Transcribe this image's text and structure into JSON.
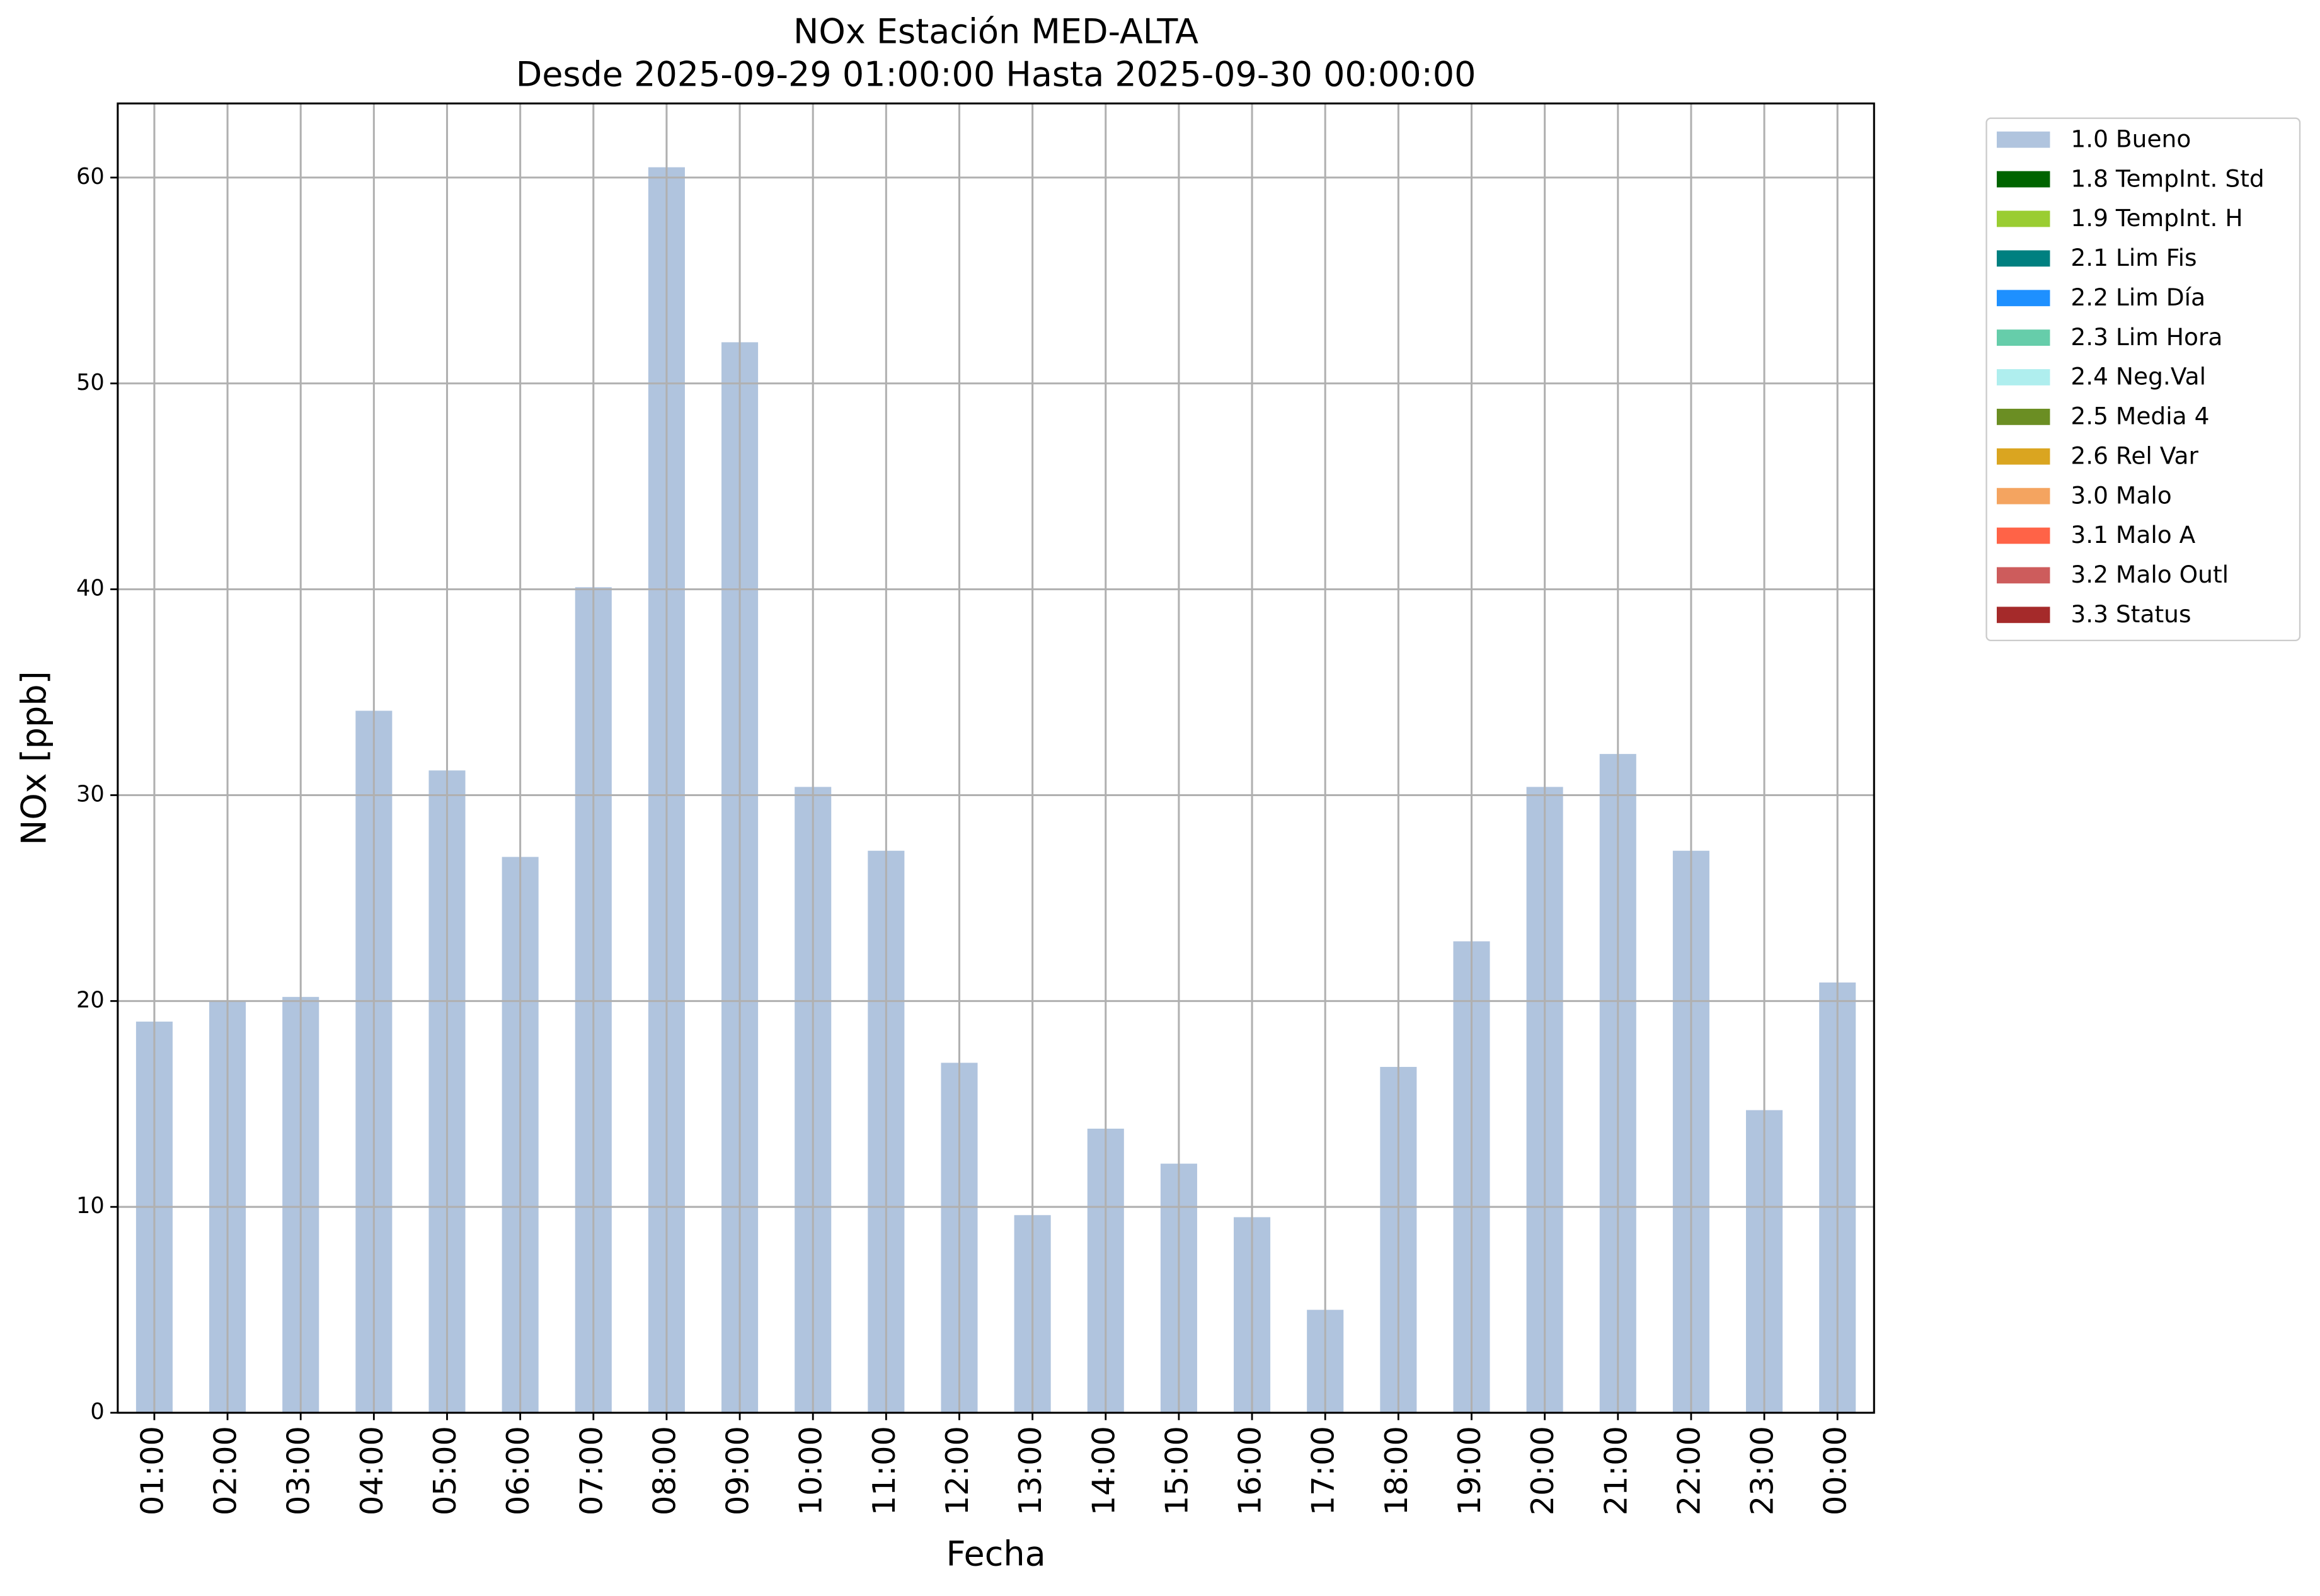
{
  "chart_data": {
    "type": "stacked_bar",
    "title": "NOx Estación MED-ALTA",
    "subtitle": "Desde 2025-09-29 01:00:00 Hasta 2025-09-30 00:00:00",
    "x_label": "Fecha",
    "y_label": "NOx [ppb]",
    "categories": [
      "01:00",
      "02:00",
      "03:00",
      "04:00",
      "05:00",
      "06:00",
      "07:00",
      "08:00",
      "09:00",
      "10:00",
      "11:00",
      "12:00",
      "13:00",
      "14:00",
      "15:00",
      "16:00",
      "17:00",
      "18:00",
      "19:00",
      "20:00",
      "21:00",
      "22:00",
      "23:00",
      "00:00"
    ],
    "series": [
      {
        "name": "1.0 Bueno",
        "color": "#b0c4de",
        "values": [
          19.0,
          20.0,
          20.2,
          34.1,
          31.2,
          27.0,
          40.1,
          60.5,
          52.0,
          30.4,
          27.3,
          17.0,
          9.6,
          13.8,
          12.1,
          9.5,
          5.0,
          16.8,
          22.9,
          30.4,
          32.0,
          27.3,
          14.7,
          20.9
        ]
      },
      {
        "name": "1.8 TempInt. Std",
        "color": "#006400",
        "values": [
          null,
          null,
          null,
          null,
          null,
          null,
          null,
          null,
          null,
          null,
          null,
          null,
          null,
          null,
          null,
          null,
          null,
          null,
          null,
          null,
          null,
          null,
          null,
          null
        ]
      },
      {
        "name": "1.9 TempInt. H",
        "color": "#9acd32",
        "values": [
          null,
          null,
          null,
          null,
          null,
          null,
          null,
          null,
          null,
          null,
          null,
          null,
          null,
          null,
          null,
          null,
          null,
          null,
          null,
          null,
          null,
          null,
          null,
          null
        ]
      },
      {
        "name": "2.1 Lim Fis",
        "color": "#008080",
        "values": [
          null,
          null,
          null,
          null,
          null,
          null,
          null,
          null,
          null,
          null,
          null,
          null,
          null,
          null,
          null,
          null,
          null,
          null,
          null,
          null,
          null,
          null,
          null,
          null
        ]
      },
      {
        "name": "2.2 Lim Día",
        "color": "#1e90ff",
        "values": [
          null,
          null,
          null,
          null,
          null,
          null,
          null,
          null,
          null,
          null,
          null,
          null,
          null,
          null,
          null,
          null,
          null,
          null,
          null,
          null,
          null,
          null,
          null,
          null
        ]
      },
      {
        "name": "2.3 Lim Hora",
        "color": "#66cdaa",
        "values": [
          null,
          null,
          null,
          null,
          null,
          null,
          null,
          null,
          null,
          null,
          null,
          null,
          null,
          null,
          null,
          null,
          null,
          null,
          null,
          null,
          null,
          null,
          null,
          null
        ]
      },
      {
        "name": "2.4 Neg.Val",
        "color": "#afeeee",
        "values": [
          null,
          null,
          null,
          null,
          null,
          null,
          null,
          null,
          null,
          null,
          null,
          null,
          null,
          null,
          null,
          null,
          null,
          null,
          null,
          null,
          null,
          null,
          null,
          null
        ]
      },
      {
        "name": "2.5 Media 4",
        "color": "#6b8e23",
        "values": [
          null,
          null,
          null,
          null,
          null,
          null,
          null,
          null,
          null,
          null,
          null,
          null,
          null,
          null,
          null,
          null,
          null,
          null,
          null,
          null,
          null,
          null,
          null,
          null
        ]
      },
      {
        "name": "2.6 Rel Var",
        "color": "#daa520",
        "values": [
          null,
          null,
          null,
          null,
          null,
          null,
          null,
          null,
          null,
          null,
          null,
          null,
          null,
          null,
          null,
          null,
          null,
          null,
          null,
          null,
          null,
          null,
          null,
          null
        ]
      },
      {
        "name": "3.0 Malo",
        "color": "#f4a460",
        "values": [
          null,
          null,
          null,
          null,
          null,
          null,
          null,
          null,
          null,
          null,
          null,
          null,
          null,
          null,
          null,
          null,
          null,
          null,
          null,
          null,
          null,
          null,
          null,
          null
        ]
      },
      {
        "name": "3.1 Malo A",
        "color": "#ff6347",
        "values": [
          null,
          null,
          null,
          null,
          null,
          null,
          null,
          null,
          null,
          null,
          null,
          null,
          null,
          null,
          null,
          null,
          null,
          null,
          null,
          null,
          null,
          null,
          null,
          null
        ]
      },
      {
        "name": "3.2 Malo Outl",
        "color": "#cd5c5c",
        "values": [
          null,
          null,
          null,
          null,
          null,
          null,
          null,
          null,
          null,
          null,
          null,
          null,
          null,
          null,
          null,
          null,
          null,
          null,
          null,
          null,
          null,
          null,
          null,
          null
        ]
      },
      {
        "name": "3.3 Status",
        "color": "#a52a2a",
        "values": [
          null,
          null,
          null,
          null,
          null,
          null,
          null,
          null,
          null,
          null,
          null,
          null,
          null,
          null,
          null,
          null,
          null,
          null,
          null,
          null,
          null,
          null,
          null,
          null
        ]
      }
    ],
    "ylim": [
      0,
      63.6
    ],
    "yticks": [
      0,
      10,
      20,
      30,
      40,
      50,
      60
    ],
    "grid": true,
    "legend": "outside-right"
  }
}
